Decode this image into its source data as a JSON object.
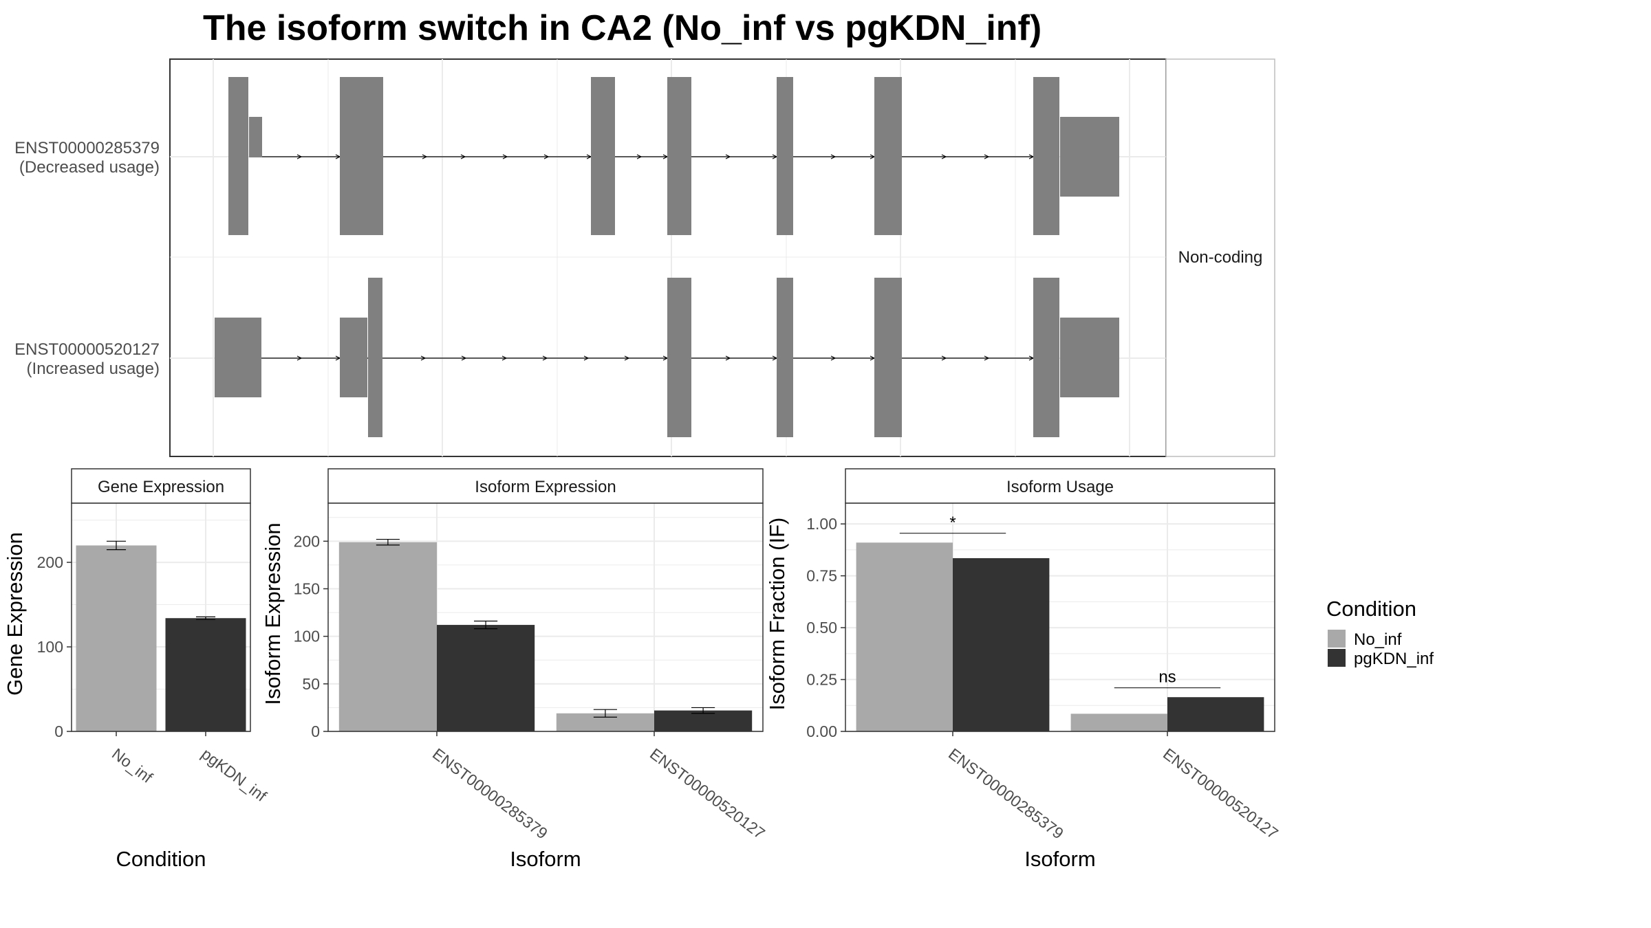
{
  "title": "The isoform switch in CA2 (No_inf vs pgKDN_inf)",
  "colors": {
    "no_inf": "#A9A9A9",
    "pgkdn_inf": "#333333",
    "exon": "#808080",
    "grid": "#EBEBEB",
    "strip": "#FFFFFF"
  },
  "chart_data": [
    {
      "type": "gene-structure",
      "panel_label": "Non-coding",
      "transcripts": [
        {
          "id": "ENST00000285379",
          "usage": "(Decreased usage)"
        },
        {
          "id": "ENST00000520127",
          "usage": "(Increased usage)"
        }
      ]
    },
    {
      "type": "bar",
      "title": "Gene Expression",
      "xlabel": "Condition",
      "ylabel": "Gene Expression",
      "categories": [
        "No_inf",
        "pgKDN_inf"
      ],
      "values": [
        220,
        134
      ],
      "errors": [
        5,
        1.5
      ],
      "ylim": [
        0,
        270
      ],
      "yticks": [
        0,
        100,
        200
      ],
      "grid": true
    },
    {
      "type": "bar",
      "title": "Isoform Expression",
      "xlabel": "Isoform",
      "ylabel": "Isoform Expression",
      "categories": [
        "ENST00000285379",
        "ENST00000520127"
      ],
      "series": [
        {
          "name": "No_inf",
          "values": [
            199,
            19
          ],
          "errors": [
            3,
            4
          ]
        },
        {
          "name": "pgKDN_inf",
          "values": [
            112,
            22
          ],
          "errors": [
            4,
            3
          ]
        }
      ],
      "ylim": [
        0,
        240
      ],
      "yticks": [
        0,
        50,
        100,
        150,
        200
      ],
      "grid": true
    },
    {
      "type": "bar",
      "title": "Isoform Usage",
      "xlabel": "Isoform",
      "ylabel": "Isoform Fraction (IF)",
      "categories": [
        "ENST00000285379",
        "ENST00000520127"
      ],
      "series": [
        {
          "name": "No_inf",
          "values": [
            0.91,
            0.085
          ]
        },
        {
          "name": "pgKDN_inf",
          "values": [
            0.835,
            0.165
          ]
        }
      ],
      "annotations": [
        "*",
        "ns"
      ],
      "ylim": [
        0,
        1.1
      ],
      "yticks": [
        "0.00",
        "0.25",
        "0.50",
        "0.75",
        "1.00"
      ],
      "grid": true
    }
  ],
  "legend": {
    "title": "Condition",
    "items": [
      "No_inf",
      "pgKDN_inf"
    ]
  }
}
